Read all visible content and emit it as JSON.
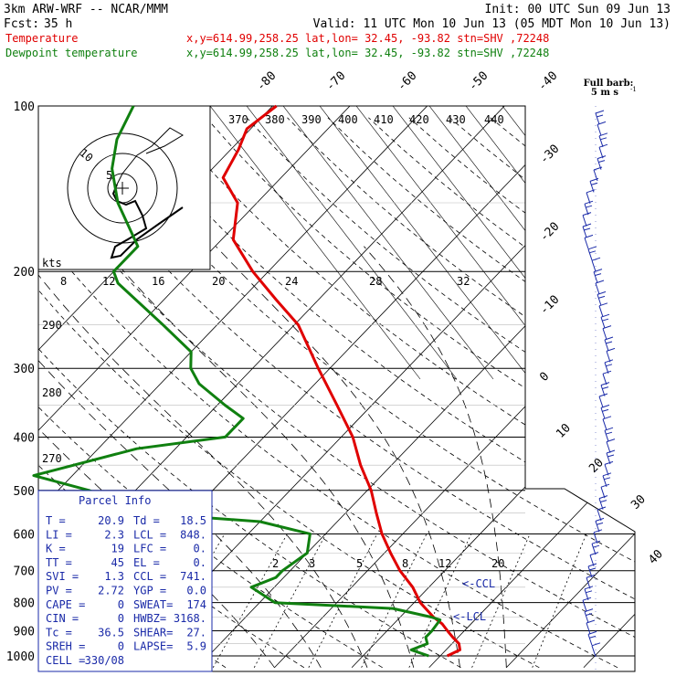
{
  "header": {
    "model": "3km ARW-WRF -- NCAR/MMM",
    "init": "Init: 00 UTC Sun 09 Jun 13",
    "fcst_label": "Fcst:",
    "fcst_value": "35 h",
    "valid": "Valid: 11 UTC Mon 10 Jun 13 (05 MDT Mon 10 Jun 13)",
    "temp_line": {
      "name": "Temperature",
      "info": "x,y=614.99,258.25   lat,lon= 32.45, -93.82   stn=SHV ,72248",
      "color": "#e00000"
    },
    "dew_line": {
      "name": "Dewpoint temperature",
      "info": "x,y=614.99,258.25   lat,lon= 32.45, -93.82   stn=SHV ,72248",
      "color": "#108010"
    }
  },
  "barb_key": {
    "title": "Full barb:",
    "value": "5 m s",
    "superscript": "-1"
  },
  "hodograph": {
    "units": "kts",
    "ring_labels": [
      "5",
      "10"
    ]
  },
  "parcel_info": {
    "title": "Parcel Info",
    "rows": [
      [
        "T  =",
        "20.9",
        "Td =",
        "18.5"
      ],
      [
        "LI =",
        "2.3",
        "LCL =",
        "848."
      ],
      [
        "K  =",
        "19",
        "LFC =",
        "0."
      ],
      [
        "TT =",
        "45",
        "EL  =",
        "0."
      ],
      [
        "SVI =",
        "1.3",
        "CCL =",
        "741."
      ],
      [
        "PV =",
        "2.72",
        "YGP =",
        "0.0"
      ],
      [
        "CAPE =",
        "0",
        "SWEAT=",
        "174"
      ],
      [
        "CIN =",
        "0",
        "HWBZ=",
        "3168."
      ],
      [
        "Tc =",
        "36.5",
        "SHEAR=",
        "27."
      ],
      [
        "SREH =",
        "0",
        "LAPSE=",
        "5.9"
      ],
      [
        "CELL =",
        "330/08",
        "",
        ""
      ]
    ]
  },
  "chart_data": {
    "type": "line",
    "title": "",
    "y_axis": "pressure (hPa), log scale",
    "ylim": [
      1000,
      100
    ],
    "xlim_at_1000hPa": [
      -32,
      41
    ],
    "pressure_labels": [
      "100",
      "200",
      "300",
      "400",
      "500",
      "600",
      "700",
      "800",
      "900",
      "1000"
    ],
    "isotherm_labels": [
      "-80",
      "-70",
      "-60",
      "-50",
      "-40",
      "-30",
      "-20",
      "-10",
      "0",
      "10",
      "20",
      "30",
      "40"
    ],
    "theta_labels": [
      "290",
      "280",
      "270"
    ],
    "theta_e_labels": [
      "370",
      "380",
      "390",
      "400",
      "410",
      "420",
      "430",
      "440"
    ],
    "mixing_ratio_labels_upper": [
      "8",
      "12",
      "16",
      "20",
      "24",
      "28",
      "32"
    ],
    "mixing_ratio_labels_lower": [
      "2",
      "3",
      "5",
      "8",
      "12",
      "20"
    ],
    "level_markers": [
      "<-CCL",
      "<-LCL"
    ],
    "series": [
      {
        "name": "Temperature",
        "color": "#e00000",
        "points": [
          {
            "p": 1000,
            "t": 20.9
          },
          {
            "p": 975,
            "t": 21.8
          },
          {
            "p": 950,
            "t": 20.9
          },
          {
            "p": 925,
            "t": 19.3
          },
          {
            "p": 900,
            "t": 17.8
          },
          {
            "p": 875,
            "t": 16.3
          },
          {
            "p": 850,
            "t": 14.3
          },
          {
            "p": 800,
            "t": 10.8
          },
          {
            "p": 750,
            "t": 7.9
          },
          {
            "p": 700,
            "t": 4.2
          },
          {
            "p": 650,
            "t": 0.8
          },
          {
            "p": 600,
            "t": -2.7
          },
          {
            "p": 550,
            "t": -6.0
          },
          {
            "p": 500,
            "t": -9.5
          },
          {
            "p": 450,
            "t": -14.0
          },
          {
            "p": 400,
            "t": -18.5
          },
          {
            "p": 350,
            "t": -24.5
          },
          {
            "p": 300,
            "t": -31.5
          },
          {
            "p": 250,
            "t": -39.5
          },
          {
            "p": 225,
            "t": -45.5
          },
          {
            "p": 200,
            "t": -52.0
          },
          {
            "p": 175,
            "t": -58.5
          },
          {
            "p": 150,
            "t": -62.5
          },
          {
            "p": 135,
            "t": -67.5
          },
          {
            "p": 120,
            "t": -69.0
          },
          {
            "p": 110,
            "t": -70.5
          },
          {
            "p": 100,
            "t": -69.5
          }
        ]
      },
      {
        "name": "Dewpoint temperature",
        "color": "#108010",
        "points": [
          {
            "p": 1000,
            "t": 18.5
          },
          {
            "p": 975,
            "t": 15.5
          },
          {
            "p": 950,
            "t": 16.8
          },
          {
            "p": 925,
            "t": 15.8
          },
          {
            "p": 900,
            "t": 15.8
          },
          {
            "p": 860,
            "t": 15.5
          },
          {
            "p": 850,
            "t": 14.0
          },
          {
            "p": 820,
            "t": 8.0
          },
          {
            "p": 800,
            "t": -8.0
          },
          {
            "p": 750,
            "t": -13.0
          },
          {
            "p": 720,
            "t": -11.0
          },
          {
            "p": 700,
            "t": -11.0
          },
          {
            "p": 650,
            "t": -10.0
          },
          {
            "p": 600,
            "t": -12.0
          },
          {
            "p": 570,
            "t": -20.0
          },
          {
            "p": 550,
            "t": -36.0
          },
          {
            "p": 500,
            "t": -46.0
          },
          {
            "p": 470,
            "t": -55.0
          },
          {
            "p": 420,
            "t": -45.0
          },
          {
            "p": 400,
            "t": -35.0
          },
          {
            "p": 370,
            "t": -35.0
          },
          {
            "p": 350,
            "t": -39.0
          },
          {
            "p": 320,
            "t": -45.0
          },
          {
            "p": 300,
            "t": -48.0
          },
          {
            "p": 280,
            "t": -50.0
          },
          {
            "p": 250,
            "t": -57.0
          },
          {
            "p": 210,
            "t": -68.0
          },
          {
            "p": 200,
            "t": -70.0
          },
          {
            "p": 180,
            "t": -70.0
          },
          {
            "p": 150,
            "t": -78.0
          },
          {
            "p": 130,
            "t": -83.0
          },
          {
            "p": 115,
            "t": -86.0
          },
          {
            "p": 100,
            "t": -88.0
          }
        ]
      }
    ]
  }
}
